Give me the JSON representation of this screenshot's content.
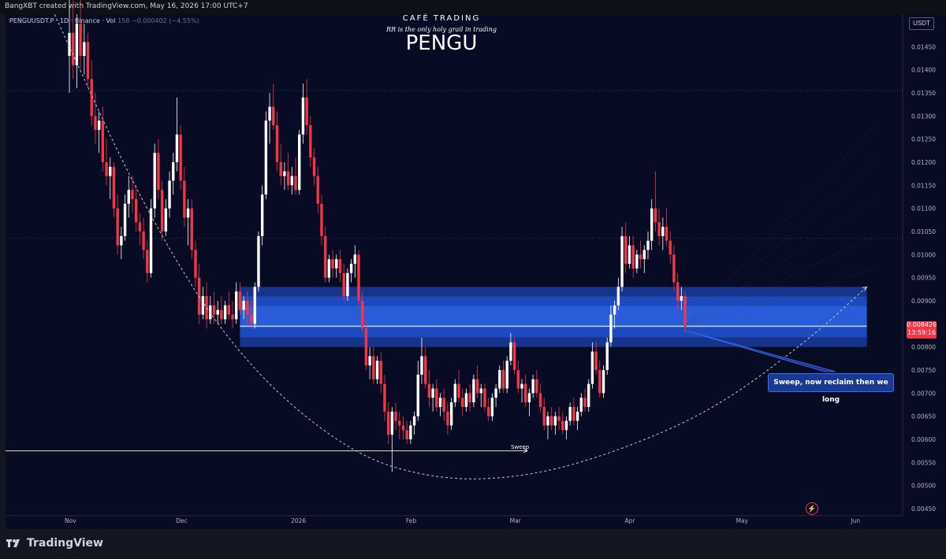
{
  "header": {
    "created_by": "BangXBT created with TradingView.com, May 16, 2026 17:00 UTC+7"
  },
  "symbol": {
    "ticker": "PENGUUSDT.P · 1D · Binance",
    "vol_label": "Vol",
    "value": "158",
    "change": "−0.000402 (−4.55%)"
  },
  "brand": "CAFÉ TRADING",
  "tagline": "RR is the only holy grail in trading",
  "title": "PENGU",
  "currency": "USDT",
  "price_tag": {
    "price": "0.008426",
    "countdown": "13:59:16"
  },
  "callout": "Sweep, now reclaim then we long",
  "sweep_label": "Sweep",
  "footer": {
    "logo_text": "TradingView"
  },
  "colors": {
    "background": "#131722",
    "up": "#ffffff",
    "down": "#f23645",
    "zone": "#1e4fd1",
    "accent": "#3a6cff"
  },
  "chart_data": {
    "type": "candlestick",
    "ylim": [
      0.0045,
      0.015
    ],
    "y_ticks": [
      "0.01450",
      "0.01400",
      "0.01350",
      "0.01300",
      "0.01250",
      "0.01200",
      "0.01150",
      "0.01100",
      "0.01050",
      "0.01000",
      "0.00950",
      "0.00900",
      "0.00850",
      "0.00800",
      "0.00750",
      "0.00700",
      "0.00650",
      "0.00600",
      "0.00550",
      "0.00500",
      "0.00450"
    ],
    "x_ticks": [
      {
        "label": "Nov",
        "day": 0
      },
      {
        "label": "Dec",
        "day": 30
      },
      {
        "label": "2026",
        "day": 61
      },
      {
        "label": "Feb",
        "day": 92
      },
      {
        "label": "Mar",
        "day": 120
      },
      {
        "label": "Apr",
        "day": 151
      },
      {
        "label": "May",
        "day": 181
      },
      {
        "label": "Jun",
        "day": 212
      }
    ],
    "zone": {
      "low": 0.008,
      "high": 0.0093
    },
    "reclaim_level": 0.00845,
    "dotted_levels": [
      0.01355,
      0.01035
    ],
    "sweep_level": 0.00575,
    "curve_points": [
      [
        -4,
        0.0152
      ],
      [
        20,
        0.011
      ],
      [
        45,
        0.0078
      ],
      [
        75,
        0.0057
      ],
      [
        100,
        0.0051
      ],
      [
        125,
        0.0052
      ],
      [
        150,
        0.0058
      ],
      [
        175,
        0.0067
      ],
      [
        200,
        0.0082
      ],
      [
        215,
        0.0093
      ]
    ],
    "ohlc": [
      [
        0.0143,
        0.016,
        0.0135,
        0.0148
      ],
      [
        0.0148,
        0.0155,
        0.0138,
        0.0141
      ],
      [
        0.0141,
        0.0152,
        0.0136,
        0.015
      ],
      [
        0.015,
        0.0158,
        0.014,
        0.0143
      ],
      [
        0.0143,
        0.015,
        0.0139,
        0.0146
      ],
      [
        0.0146,
        0.0148,
        0.0136,
        0.0138
      ],
      [
        0.0138,
        0.0142,
        0.0128,
        0.013
      ],
      [
        0.013,
        0.0135,
        0.0124,
        0.0127
      ],
      [
        0.0127,
        0.0131,
        0.0122,
        0.0129
      ],
      [
        0.0129,
        0.0132,
        0.0118,
        0.012
      ],
      [
        0.012,
        0.0125,
        0.0115,
        0.0117
      ],
      [
        0.0117,
        0.0121,
        0.0112,
        0.0119
      ],
      [
        0.0119,
        0.012,
        0.0108,
        0.011
      ],
      [
        0.011,
        0.0113,
        0.01,
        0.0102
      ],
      [
        0.0102,
        0.0106,
        0.0099,
        0.0104
      ],
      [
        0.0104,
        0.0113,
        0.0103,
        0.0111
      ],
      [
        0.0111,
        0.0117,
        0.0108,
        0.0114
      ],
      [
        0.0114,
        0.0117,
        0.0109,
        0.0112
      ],
      [
        0.0112,
        0.0115,
        0.0105,
        0.0107
      ],
      [
        0.0107,
        0.0109,
        0.0102,
        0.0105
      ],
      [
        0.0105,
        0.0108,
        0.0099,
        0.0101
      ],
      [
        0.0101,
        0.0103,
        0.0094,
        0.0096
      ],
      [
        0.0096,
        0.0112,
        0.0095,
        0.011
      ],
      [
        0.011,
        0.0124,
        0.0108,
        0.0122
      ],
      [
        0.0122,
        0.0125,
        0.0112,
        0.0114
      ],
      [
        0.0114,
        0.0116,
        0.0103,
        0.0105
      ],
      [
        0.0105,
        0.0112,
        0.0104,
        0.011
      ],
      [
        0.011,
        0.0118,
        0.0108,
        0.0116
      ],
      [
        0.0116,
        0.0122,
        0.0113,
        0.012
      ],
      [
        0.012,
        0.0134,
        0.0118,
        0.0126
      ],
      [
        0.0126,
        0.0128,
        0.0114,
        0.0116
      ],
      [
        0.0116,
        0.0119,
        0.0106,
        0.0108
      ],
      [
        0.0108,
        0.0112,
        0.0102,
        0.011
      ],
      [
        0.011,
        0.0112,
        0.0099,
        0.0101
      ],
      [
        0.0101,
        0.0103,
        0.0093,
        0.0095
      ],
      [
        0.0095,
        0.0098,
        0.0085,
        0.0087
      ],
      [
        0.0087,
        0.0093,
        0.0086,
        0.0091
      ],
      [
        0.0091,
        0.0094,
        0.0084,
        0.0086
      ],
      [
        0.0086,
        0.0091,
        0.0085,
        0.0089
      ],
      [
        0.0089,
        0.0092,
        0.0085,
        0.0087
      ],
      [
        0.0087,
        0.009,
        0.0085,
        0.0088
      ],
      [
        0.0088,
        0.0091,
        0.0085,
        0.0086
      ],
      [
        0.0086,
        0.009,
        0.0085,
        0.0089
      ],
      [
        0.0089,
        0.0092,
        0.0086,
        0.0087
      ],
      [
        0.0087,
        0.009,
        0.0084,
        0.0086
      ],
      [
        0.0086,
        0.0094,
        0.0085,
        0.0092
      ],
      [
        0.0092,
        0.0094,
        0.0087,
        0.0088
      ],
      [
        0.0088,
        0.0091,
        0.0086,
        0.009
      ],
      [
        0.009,
        0.0092,
        0.0085,
        0.0087
      ],
      [
        0.0087,
        0.009,
        0.0084,
        0.0085
      ],
      [
        0.0085,
        0.0094,
        0.0084,
        0.0093
      ],
      [
        0.0093,
        0.0105,
        0.0092,
        0.0104
      ],
      [
        0.0104,
        0.0115,
        0.0102,
        0.0113
      ],
      [
        0.0113,
        0.0131,
        0.0112,
        0.0129
      ],
      [
        0.0129,
        0.0135,
        0.0124,
        0.0132
      ],
      [
        0.0132,
        0.0137,
        0.0127,
        0.0128
      ],
      [
        0.0128,
        0.0131,
        0.0118,
        0.012
      ],
      [
        0.012,
        0.0124,
        0.0115,
        0.0117
      ],
      [
        0.0117,
        0.012,
        0.0114,
        0.0118
      ],
      [
        0.0118,
        0.0122,
        0.0114,
        0.0115
      ],
      [
        0.0115,
        0.0119,
        0.0113,
        0.0117
      ],
      [
        0.0117,
        0.0121,
        0.0113,
        0.0114
      ],
      [
        0.0114,
        0.0127,
        0.0113,
        0.0126
      ],
      [
        0.0126,
        0.0137,
        0.0124,
        0.0134
      ],
      [
        0.0134,
        0.0138,
        0.0126,
        0.0128
      ],
      [
        0.0128,
        0.013,
        0.0119,
        0.0121
      ],
      [
        0.0121,
        0.0123,
        0.0115,
        0.0117
      ],
      [
        0.0117,
        0.0119,
        0.0109,
        0.0111
      ],
      [
        0.0111,
        0.0113,
        0.0102,
        0.0104
      ],
      [
        0.0104,
        0.0106,
        0.0094,
        0.0095
      ],
      [
        0.0095,
        0.01,
        0.0094,
        0.0099
      ],
      [
        0.0099,
        0.0101,
        0.0095,
        0.0097
      ],
      [
        0.0097,
        0.01,
        0.0095,
        0.0099
      ],
      [
        0.0099,
        0.0101,
        0.0094,
        0.0096
      ],
      [
        0.0096,
        0.0098,
        0.009,
        0.0091
      ],
      [
        0.0091,
        0.0097,
        0.009,
        0.0096
      ],
      [
        0.0096,
        0.0099,
        0.0094,
        0.0098
      ],
      [
        0.0098,
        0.0102,
        0.0095,
        0.01
      ],
      [
        0.01,
        0.0101,
        0.0089,
        0.009
      ],
      [
        0.009,
        0.0092,
        0.0083,
        0.0084
      ],
      [
        0.0084,
        0.0086,
        0.0075,
        0.0076
      ],
      [
        0.0076,
        0.008,
        0.0073,
        0.0078
      ],
      [
        0.0078,
        0.008,
        0.0072,
        0.0073
      ],
      [
        0.0073,
        0.0078,
        0.0072,
        0.0077
      ],
      [
        0.0077,
        0.0079,
        0.007,
        0.0072
      ],
      [
        0.0072,
        0.0074,
        0.0064,
        0.0066
      ],
      [
        0.0066,
        0.0068,
        0.0059,
        0.0061
      ],
      [
        0.0061,
        0.0067,
        0.0053,
        0.0066
      ],
      [
        0.0066,
        0.0068,
        0.0062,
        0.0064
      ],
      [
        0.0064,
        0.0066,
        0.006,
        0.0063
      ],
      [
        0.0063,
        0.0065,
        0.006,
        0.0062
      ],
      [
        0.0062,
        0.0064,
        0.0059,
        0.006
      ],
      [
        0.006,
        0.0064,
        0.0059,
        0.0063
      ],
      [
        0.0063,
        0.0066,
        0.0061,
        0.0065
      ],
      [
        0.0065,
        0.0077,
        0.0064,
        0.0074
      ],
      [
        0.0074,
        0.0082,
        0.0072,
        0.0078
      ],
      [
        0.0078,
        0.008,
        0.0071,
        0.0072
      ],
      [
        0.0072,
        0.0075,
        0.0067,
        0.0069
      ],
      [
        0.0069,
        0.0072,
        0.0066,
        0.0071
      ],
      [
        0.0071,
        0.0073,
        0.0066,
        0.0067
      ],
      [
        0.0067,
        0.007,
        0.0065,
        0.0069
      ],
      [
        0.0069,
        0.0071,
        0.0064,
        0.0066
      ],
      [
        0.0066,
        0.0068,
        0.0061,
        0.0063
      ],
      [
        0.0063,
        0.0069,
        0.0062,
        0.0068
      ],
      [
        0.0068,
        0.0073,
        0.0067,
        0.0072
      ],
      [
        0.0072,
        0.0075,
        0.0068,
        0.0069
      ],
      [
        0.0069,
        0.0071,
        0.0065,
        0.0067
      ],
      [
        0.0067,
        0.0071,
        0.0066,
        0.007
      ],
      [
        0.007,
        0.0072,
        0.0066,
        0.0068
      ],
      [
        0.0068,
        0.0074,
        0.0067,
        0.0073
      ],
      [
        0.0073,
        0.0076,
        0.0069,
        0.007
      ],
      [
        0.007,
        0.0072,
        0.0067,
        0.0071
      ],
      [
        0.0071,
        0.0072,
        0.0066,
        0.0067
      ],
      [
        0.0067,
        0.0069,
        0.0064,
        0.0065
      ],
      [
        0.0065,
        0.007,
        0.0064,
        0.0069
      ],
      [
        0.0069,
        0.0072,
        0.0067,
        0.0071
      ],
      [
        0.0071,
        0.0076,
        0.007,
        0.0075
      ],
      [
        0.0075,
        0.0077,
        0.007,
        0.0071
      ],
      [
        0.0071,
        0.0078,
        0.007,
        0.0077
      ],
      [
        0.0077,
        0.0083,
        0.0076,
        0.0081
      ],
      [
        0.0081,
        0.0082,
        0.0074,
        0.0075
      ],
      [
        0.0075,
        0.0077,
        0.007,
        0.0071
      ],
      [
        0.0071,
        0.0073,
        0.0068,
        0.0072
      ],
      [
        0.0072,
        0.0074,
        0.0067,
        0.0068
      ],
      [
        0.0068,
        0.0071,
        0.0065,
        0.007
      ],
      [
        0.007,
        0.0074,
        0.0069,
        0.0073
      ],
      [
        0.0073,
        0.0075,
        0.0069,
        0.007
      ],
      [
        0.007,
        0.0072,
        0.0066,
        0.0067
      ],
      [
        0.0067,
        0.0069,
        0.0062,
        0.0063
      ],
      [
        0.0063,
        0.0066,
        0.006,
        0.0065
      ],
      [
        0.0065,
        0.0067,
        0.0062,
        0.0063
      ],
      [
        0.0063,
        0.0066,
        0.0061,
        0.0065
      ],
      [
        0.0065,
        0.0067,
        0.0062,
        0.0064
      ],
      [
        0.0064,
        0.0066,
        0.0061,
        0.0062
      ],
      [
        0.0062,
        0.0065,
        0.006,
        0.0064
      ],
      [
        0.0064,
        0.0068,
        0.0063,
        0.0067
      ],
      [
        0.0067,
        0.0069,
        0.0063,
        0.0064
      ],
      [
        0.0064,
        0.0067,
        0.0062,
        0.0066
      ],
      [
        0.0066,
        0.007,
        0.0065,
        0.0069
      ],
      [
        0.0069,
        0.0071,
        0.0066,
        0.0067
      ],
      [
        0.0067,
        0.0073,
        0.0066,
        0.0072
      ],
      [
        0.0072,
        0.0081,
        0.0071,
        0.0079
      ],
      [
        0.0079,
        0.0081,
        0.0074,
        0.0075
      ],
      [
        0.0075,
        0.0077,
        0.0069,
        0.007
      ],
      [
        0.007,
        0.0076,
        0.0069,
        0.0075
      ],
      [
        0.0075,
        0.0082,
        0.0074,
        0.0081
      ],
      [
        0.0081,
        0.0089,
        0.008,
        0.0087
      ],
      [
        0.0087,
        0.009,
        0.0084,
        0.0089
      ],
      [
        0.0089,
        0.0095,
        0.0088,
        0.0093
      ],
      [
        0.0093,
        0.0106,
        0.0092,
        0.0104
      ],
      [
        0.0104,
        0.0107,
        0.0096,
        0.0098
      ],
      [
        0.0098,
        0.0104,
        0.0097,
        0.0102
      ],
      [
        0.0102,
        0.0104,
        0.0095,
        0.0097
      ],
      [
        0.0097,
        0.0101,
        0.0096,
        0.01
      ],
      [
        0.01,
        0.0103,
        0.0097,
        0.0099
      ],
      [
        0.0099,
        0.0102,
        0.0096,
        0.0101
      ],
      [
        0.0101,
        0.0105,
        0.0099,
        0.0103
      ],
      [
        0.0103,
        0.0112,
        0.0101,
        0.011
      ],
      [
        0.011,
        0.0118,
        0.0105,
        0.0107
      ],
      [
        0.0107,
        0.011,
        0.0102,
        0.0104
      ],
      [
        0.0104,
        0.0108,
        0.0101,
        0.0106
      ],
      [
        0.0106,
        0.011,
        0.0102,
        0.0103
      ],
      [
        0.0103,
        0.0105,
        0.0098,
        0.01
      ],
      [
        0.01,
        0.0102,
        0.0092,
        0.0094
      ],
      [
        0.0094,
        0.0096,
        0.0088,
        0.009
      ],
      [
        0.009,
        0.0093,
        0.0088,
        0.0091
      ],
      [
        0.0091,
        0.0092,
        0.0083,
        0.00843
      ]
    ]
  }
}
